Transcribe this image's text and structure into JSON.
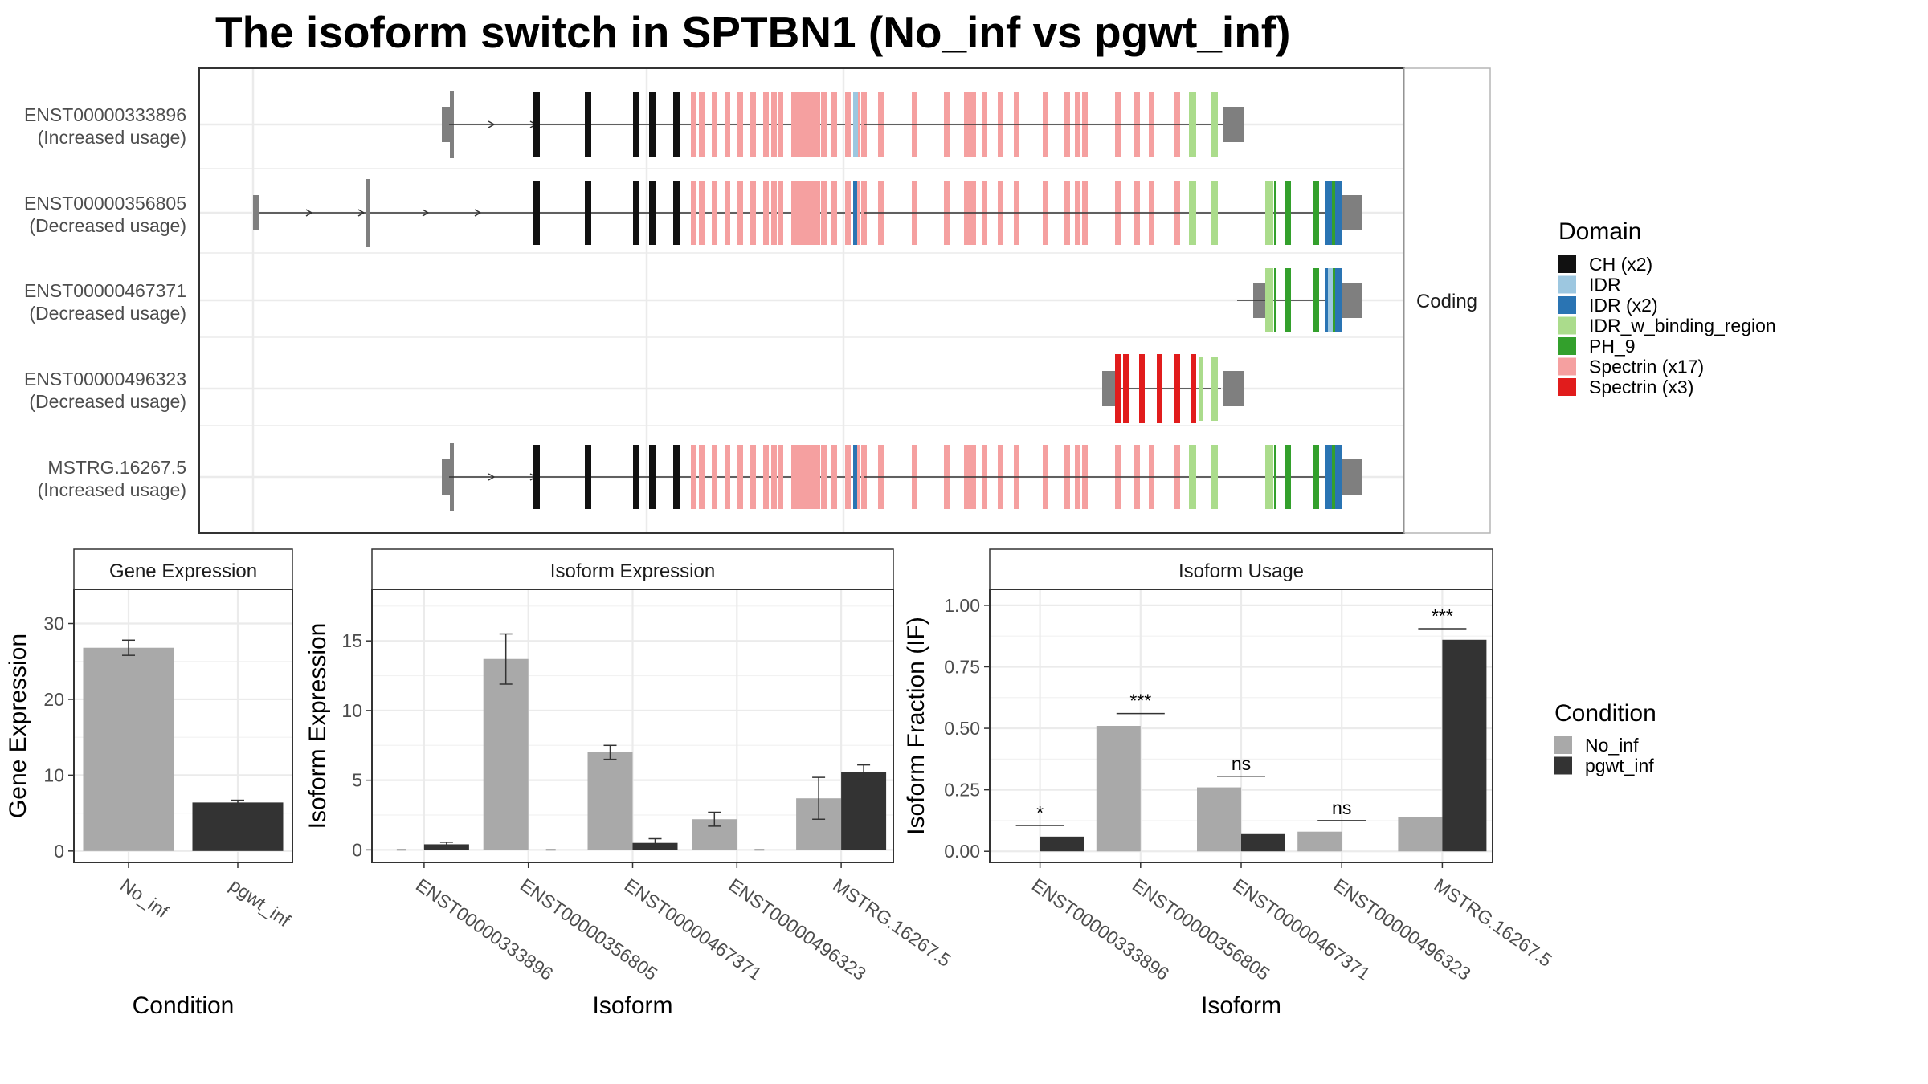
{
  "title": "The isoform switch in SPTBN1 (No_inf vs pgwt_inf)",
  "colors": {
    "CH (x2)": "#111111",
    "IDR": "#9dc7e0",
    "IDR (x2)": "#2a74b3",
    "IDR_w_binding_region": "#abdc8c",
    "PH_9": "#33a02c",
    "Spectrin (x17)": "#f5a0a0",
    "Spectrin (x3)": "#e11c1c",
    "No_inf": "#a9a9a9",
    "pgwt_inf": "#333333",
    "utr": "#7f7f7f"
  },
  "chart_data": [
    {
      "type": "other",
      "panel": "Isoform structures",
      "strip_label": "Coding",
      "isoforms": [
        {
          "id": "ENST00000333896",
          "annotation": "(Increased usage)"
        },
        {
          "id": "ENST00000356805",
          "annotation": "(Decreased usage)"
        },
        {
          "id": "ENST00000467371",
          "annotation": "(Decreased usage)"
        },
        {
          "id": "ENST00000496323",
          "annotation": "(Decreased usage)"
        },
        {
          "id": "MSTRG.16267.5",
          "annotation": "(Increased usage)"
        }
      ],
      "legend": {
        "title": "Domain",
        "items": [
          "CH (x2)",
          "IDR",
          "IDR (x2)",
          "IDR_w_binding_region",
          "PH_9",
          "Spectrin (x17)",
          "Spectrin (x3)"
        ]
      }
    },
    {
      "type": "bar",
      "strip_label": "Gene Expression",
      "xlabel": "Condition",
      "ylabel": "Gene Expression",
      "categories": [
        "No_inf",
        "pgwt_inf"
      ],
      "values": [
        26.8,
        6.4
      ],
      "errors": [
        1.0,
        0.3
      ],
      "ylim": [
        -1.5,
        34.5
      ],
      "yticks": [
        0,
        10,
        20,
        30
      ]
    },
    {
      "type": "bar",
      "strip_label": "Isoform Expression",
      "xlabel": "Isoform",
      "ylabel": "Isoform Expression",
      "categories": [
        "ENST00000333896",
        "ENST00000356805",
        "ENST00000467371",
        "ENST00000496323",
        "MSTRG.16267.5"
      ],
      "series": [
        {
          "name": "No_inf",
          "values": [
            0,
            13.7,
            7.0,
            2.2,
            3.7
          ],
          "errors": [
            0,
            1.8,
            0.5,
            0.5,
            1.5
          ]
        },
        {
          "name": "pgwt_inf",
          "values": [
            0.4,
            0,
            0.5,
            0,
            5.6
          ],
          "errors": [
            0.15,
            0,
            0.3,
            0,
            0.5
          ]
        }
      ],
      "ylim": [
        -0.9,
        18.7
      ],
      "yticks": [
        0,
        5,
        10,
        15
      ]
    },
    {
      "type": "bar",
      "strip_label": "Isoform Usage",
      "xlabel": "Isoform",
      "ylabel": "Isoform Fraction (IF)",
      "categories": [
        "ENST00000333896",
        "ENST00000356805",
        "ENST00000467371",
        "ENST00000496323",
        "MSTRG.16267.5"
      ],
      "series": [
        {
          "name": "No_inf",
          "values": [
            0,
            0.51,
            0.26,
            0.08,
            0.14
          ]
        },
        {
          "name": "pgwt_inf",
          "values": [
            0.06,
            0,
            0.07,
            0,
            0.86
          ]
        }
      ],
      "significance": [
        "*",
        "***",
        "ns",
        "ns",
        "***"
      ],
      "significance_level": [
        0.105,
        0.56,
        0.305,
        0.125,
        0.905
      ],
      "ylim": [
        -0.045,
        1.065
      ],
      "yticks": [
        "0.00",
        "0.25",
        "0.50",
        "0.75",
        "1.00"
      ]
    },
    {
      "type": "legend",
      "title": "Condition",
      "items": [
        "No_inf",
        "pgwt_inf"
      ]
    }
  ]
}
